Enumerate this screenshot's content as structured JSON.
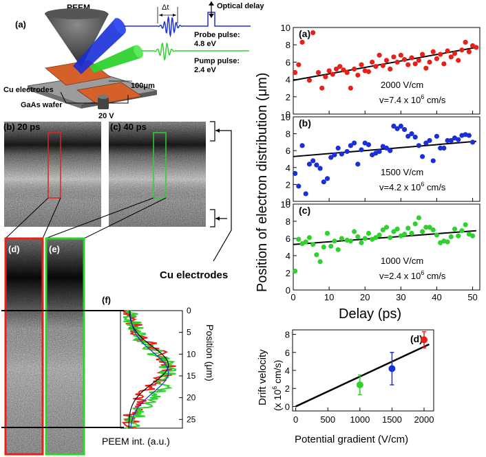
{
  "schematic": {
    "panel_label": "(a)",
    "peem_label": "PEEM",
    "delta_t_label": "Δt",
    "optical_delay_label": "Optical delay",
    "probe_label": "Probe pulse:",
    "probe_energy": "4.8 eV",
    "pump_label": "Pump pulse:",
    "pump_energy": "2.4 eV",
    "electrodes_label": "Cu electrodes",
    "wafer_label": "GaAs wafer",
    "gap_label": "100μm",
    "voltage_label": "20 V"
  },
  "images": {
    "b_label": "(b) 20 ps",
    "c_label": "(c) 40 ps",
    "d_label": "(d)",
    "e_label": "(e)",
    "electrodes_label": "Cu electrodes"
  },
  "profile": {
    "panel_label": "(f)",
    "ylabel": "Position (μm)",
    "xlabel": "PEEM int. (a.u.)",
    "yticks": [
      "0",
      "5",
      "10",
      "15",
      "20",
      "25"
    ]
  },
  "colors": {
    "red": "#e8201a",
    "green": "#2fd12f",
    "blue": "#1a2fd8",
    "black": "#000000",
    "electrode": "#d6602a"
  },
  "right": {
    "ylabel": "Position of electron distribution (μm)",
    "xlabel": "Delay (ps)",
    "panel_a_field": "2000 V/cm",
    "panel_a_velocity": "v=7.4 x 10",
    "panel_a_exp": "6",
    "panel_a_unit": " cm/s",
    "panel_b_field": "1500 V/cm",
    "panel_b_velocity": "v=4.2 x 10",
    "panel_b_exp": "6",
    "panel_b_unit": " cm/s",
    "panel_c_field": "1000 V/cm",
    "panel_c_velocity": "v=2.4 x 10",
    "panel_c_exp": "6",
    "panel_c_unit": " cm/s",
    "d_ylabel_1": "Drift velocity",
    "d_ylabel_2": "(x 10",
    "d_ylabel_exp": "6",
    "d_ylabel_3": " cm/s)",
    "d_xlabel": "Potential gradient (V/cm)"
  },
  "chart_data": [
    {
      "type": "scatter",
      "label": "(a)",
      "xlim": [
        0,
        52
      ],
      "ylim": [
        0,
        10
      ],
      "xticks": [
        0,
        10,
        20,
        30,
        40,
        50
      ],
      "yticks": [
        0,
        2,
        4,
        6,
        8,
        10
      ],
      "color": "#e8201a",
      "x": [
        0.5,
        1.5,
        2.5,
        4.5,
        5.5,
        7,
        8,
        9,
        10,
        11,
        12,
        13,
        14,
        15,
        16,
        17,
        18,
        19,
        20,
        21,
        22,
        23,
        24,
        25,
        26,
        27,
        28,
        29,
        30,
        31,
        32,
        33,
        34,
        35,
        36,
        37,
        38,
        39,
        40,
        41,
        42,
        43,
        44,
        45,
        46,
        47,
        48,
        49,
        50,
        51
      ],
      "y": [
        4.8,
        5.7,
        8.3,
        3.9,
        9.4,
        4.8,
        3.0,
        4.3,
        5.0,
        4.6,
        5.2,
        5.5,
        5.1,
        4.8,
        3.0,
        5.2,
        4.5,
        5.7,
        5.0,
        4.9,
        6.0,
        5.5,
        6.8,
        5.6,
        6.2,
        5.2,
        6.6,
        6.0,
        6.8,
        6.3,
        5.7,
        6.5,
        5.8,
        6.2,
        6.9,
        5.3,
        6.0,
        7.2,
        6.4,
        6.9,
        5.8,
        7.3,
        6.6,
        7.0,
        6.2,
        7.4,
        8.3,
        7.2,
        7.9,
        7.7
      ],
      "fit": [
        [
          0,
          3.9
        ],
        [
          51,
          7.7
        ]
      ]
    },
    {
      "type": "scatter",
      "label": "(b)",
      "xlim": [
        0,
        52
      ],
      "ylim": [
        0,
        10
      ],
      "xticks": [
        0,
        10,
        20,
        30,
        40,
        50
      ],
      "yticks": [
        0,
        2,
        4,
        6,
        8,
        10
      ],
      "color": "#1a2fd8",
      "x": [
        0.5,
        1.5,
        2.5,
        3.5,
        4.5,
        5.5,
        6.5,
        7.5,
        8.5,
        9.5,
        10.5,
        11.5,
        12.5,
        13.5,
        15,
        16,
        17,
        18,
        19,
        20,
        21,
        22,
        23,
        24,
        25,
        26,
        27,
        28,
        29,
        30,
        31,
        32,
        33,
        34,
        35,
        36,
        37,
        38,
        39,
        40,
        41,
        42,
        43,
        44,
        45,
        46,
        47,
        48,
        49,
        50
      ],
      "y": [
        3.3,
        1.8,
        6.6,
        0.9,
        4.4,
        4.8,
        4.3,
        3.9,
        2.3,
        2.7,
        5.2,
        5.5,
        6.3,
        5.6,
        5.9,
        6.6,
        6.9,
        4.4,
        6.1,
        6.9,
        6.7,
        5.5,
        5.7,
        5.9,
        6.5,
        6.3,
        6.0,
        8.9,
        8.6,
        8.9,
        8.5,
        7.7,
        8.0,
        7.6,
        6.6,
        5.3,
        6.9,
        7.2,
        4.8,
        7.7,
        6.3,
        6.3,
        7.2,
        7.2,
        7.5,
        7.3,
        7.8,
        7.9,
        7.8,
        7.0
      ],
      "fit": [
        [
          0,
          5.3
        ],
        [
          51,
          7.1
        ]
      ]
    },
    {
      "type": "scatter",
      "label": "(c)",
      "xlim": [
        0,
        52
      ],
      "ylim": [
        0,
        10
      ],
      "xticks": [
        0,
        10,
        20,
        30,
        40,
        50
      ],
      "yticks": [
        0,
        2,
        4,
        6,
        8,
        10
      ],
      "color": "#2fd12f",
      "x": [
        0.5,
        1.5,
        2.5,
        3.5,
        4.5,
        5.5,
        6.5,
        7.5,
        8.5,
        9.5,
        10.5,
        11.5,
        12.5,
        13.5,
        15,
        16,
        17,
        18,
        19,
        20,
        21,
        22,
        23,
        24,
        25,
        26,
        27,
        28,
        29,
        30,
        31,
        32,
        33,
        34,
        35,
        36,
        37,
        38,
        39,
        40,
        41,
        42,
        43,
        44,
        45,
        46,
        47,
        48,
        49,
        50
      ],
      "y": [
        2.2,
        5.9,
        5.4,
        5.6,
        6.1,
        5.3,
        4.1,
        3.3,
        5.0,
        6.6,
        5.1,
        5.7,
        4.7,
        6.0,
        5.8,
        5.7,
        6.8,
        6.2,
        5.5,
        6.0,
        6.6,
        5.9,
        6.1,
        6.4,
        7.0,
        7.3,
        6.1,
        6.8,
        7.1,
        6.3,
        6.5,
        7.2,
        6.6,
        7.7,
        8.4,
        6.8,
        7.3,
        7.3,
        7.0,
        6.4,
        5.5,
        5.7,
        5.6,
        6.2,
        7.1,
        6.3,
        6.9,
        7.6,
        6.5,
        6.3
      ],
      "fit": [
        [
          0,
          5.3
        ],
        [
          51,
          6.9
        ]
      ]
    },
    {
      "type": "scatter",
      "label": "(d)",
      "xlim": [
        -50,
        2150
      ],
      "ylim": [
        -0.5,
        8.5
      ],
      "xticks": [
        0,
        500,
        1000,
        1500,
        2000
      ],
      "yticks": [
        0,
        2,
        4,
        6,
        8
      ],
      "points": [
        {
          "x": 1000,
          "y": 2.4,
          "err": 1.1,
          "color": "#2fd12f"
        },
        {
          "x": 1500,
          "y": 4.2,
          "err": 1.8,
          "color": "#1a2fd8"
        },
        {
          "x": 2000,
          "y": 7.4,
          "err": 0.9,
          "color": "#e8201a"
        }
      ],
      "fit": [
        [
          0,
          0
        ],
        [
          2080,
          6.9
        ]
      ]
    }
  ]
}
